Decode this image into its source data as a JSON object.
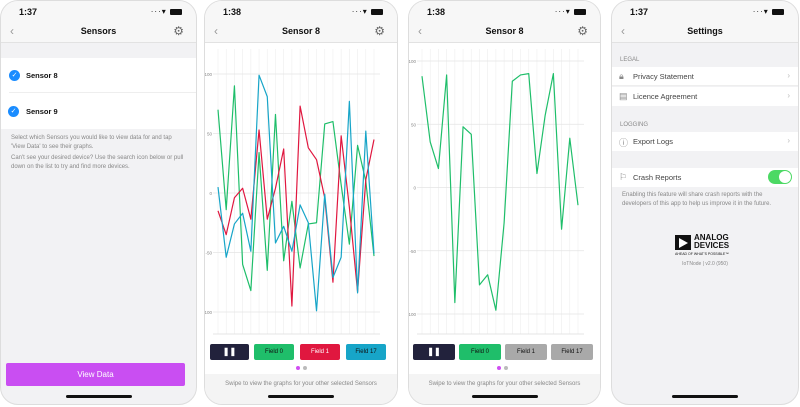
{
  "phones": [
    {
      "time": "1:37",
      "title": "Sensors",
      "sensors": [
        {
          "label": "Sensor 8",
          "checked": true
        },
        {
          "label": "Sensor 9",
          "checked": true
        }
      ],
      "help1": "Select which Sensors you would like to view data for and tap 'View Data' to see their graphs.",
      "help2": "Can't see your desired device? Use the search icon below or pull down on the list to try and find more devices.",
      "view_data": "View Data"
    },
    {
      "time": "1:38",
      "title": "Sensor 8",
      "pause_icon": "pause-icon",
      "fields": [
        {
          "label": "Field 0",
          "color": "#1fbe6a",
          "active": true
        },
        {
          "label": "Field 1",
          "color": "#e0173f",
          "active": true
        },
        {
          "label": "Field 17",
          "color": "#17a5c8",
          "active": true
        }
      ],
      "hint": "Swipe to view the graphs for your other selected Sensors"
    },
    {
      "time": "1:38",
      "title": "Sensor 8",
      "fields": [
        {
          "label": "Field 0",
          "color": "#1fbe6a",
          "active": true
        },
        {
          "label": "Field 1",
          "color": "#a9a9a9",
          "active": false
        },
        {
          "label": "Field 17",
          "color": "#a9a9a9",
          "active": false
        }
      ],
      "hint": "Swipe to view the graphs for your other selected Sensors"
    },
    {
      "time": "1:37",
      "title": "Settings",
      "legal": "LEGAL",
      "privacy": "Privacy Statement",
      "licence": "Licence Agreement",
      "logging": "LOGGING",
      "export": "Export Logs",
      "crash": "Crash Reports",
      "crash_enabled": true,
      "crash_desc": "Enabling this feature will share crash reports with the developers of this app to help us improve it in the future.",
      "logo_line1": "ANALOG",
      "logo_line2": "DEVICES",
      "logo_tag": "AHEAD OF WHAT'S POSSIBLE™",
      "version": "IoTNode | v2.0 (950)"
    }
  ],
  "chart_data": [
    {
      "type": "line",
      "yticks": [
        "100",
        "50",
        "0",
        "-50",
        "-100"
      ],
      "ylim": [
        -120,
        120
      ],
      "grid": true,
      "series": [
        {
          "name": "Field 0",
          "color": "#1fbe6a",
          "values": [
            70,
            -14,
            90,
            -60,
            -82,
            34,
            -65,
            66,
            -57,
            -7,
            -63,
            -26,
            -25,
            58,
            60,
            7,
            -43,
            40,
            10,
            -53
          ]
        },
        {
          "name": "Field 1",
          "color": "#e0173f",
          "values": [
            -15,
            -35,
            -4,
            4,
            -22,
            53,
            -22,
            4,
            37,
            -95,
            73,
            38,
            28,
            -4,
            -75,
            48,
            -12,
            -83,
            11,
            45
          ]
        },
        {
          "name": "Field 17",
          "color": "#17a5c8",
          "values": [
            5,
            -54,
            -26,
            -17,
            -49,
            99,
            81,
            -42,
            -28,
            -49,
            -10,
            -25,
            -99,
            -1,
            -71,
            -54,
            77,
            -84,
            52,
            -51
          ]
        }
      ]
    },
    {
      "type": "line",
      "yticks": [
        "100",
        "50",
        "0",
        "-50",
        "-100"
      ],
      "ylim": [
        -120,
        120
      ],
      "grid": true,
      "series": [
        {
          "name": "Field 0",
          "color": "#1fbe6a",
          "values": [
            88,
            36,
            15,
            89,
            -91,
            48,
            42,
            -77,
            -69,
            -97,
            -28,
            84,
            89,
            90,
            11,
            57,
            90,
            -33,
            39,
            -14
          ]
        }
      ]
    }
  ]
}
